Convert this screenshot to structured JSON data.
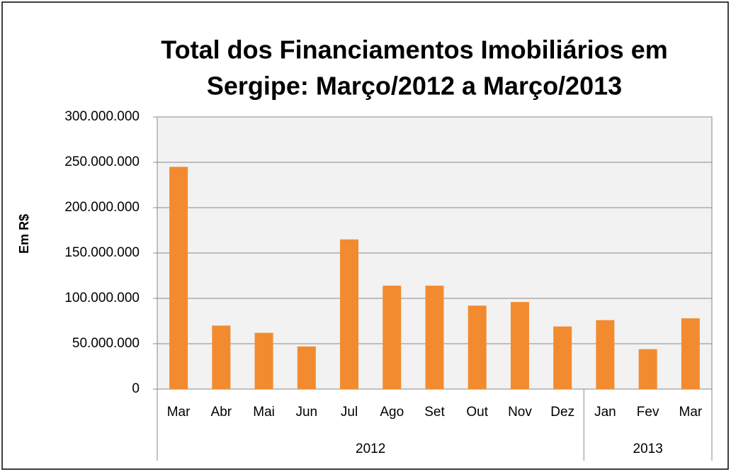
{
  "chart_data": {
    "type": "bar",
    "title": [
      "Total dos Financiamentos Imobiliários em",
      "Sergipe: Março/2012 a Março/2013"
    ],
    "y_label": "Em R$",
    "categories": [
      "Mar",
      "Abr",
      "Mai",
      "Jun",
      "Jul",
      "Ago",
      "Set",
      "Out",
      "Nov",
      "Dez",
      "Jan",
      "Fev",
      "Mar"
    ],
    "groups": [
      {
        "name": "2012",
        "count": 10
      },
      {
        "name": "2013",
        "count": 3
      }
    ],
    "values": [
      245000000,
      70000000,
      62000000,
      47000000,
      165000000,
      114000000,
      114000000,
      92000000,
      96000000,
      69000000,
      76000000,
      44000000,
      78000000
    ],
    "color": "#f28b30",
    "ylim": [
      0,
      300000000
    ],
    "yticks": [
      0,
      {
        "value": 50000000,
        "label": "50.000.000"
      },
      {
        "value": 100000000,
        "label": "100.000.000"
      },
      {
        "value": 150000000,
        "label": "150.000.000"
      },
      {
        "value": 200000000,
        "label": "200.000.000"
      },
      {
        "value": 250000000,
        "label": "250.000.000"
      },
      {
        "value": 300000000,
        "label": "300.000.000"
      }
    ],
    "grid": true
  }
}
